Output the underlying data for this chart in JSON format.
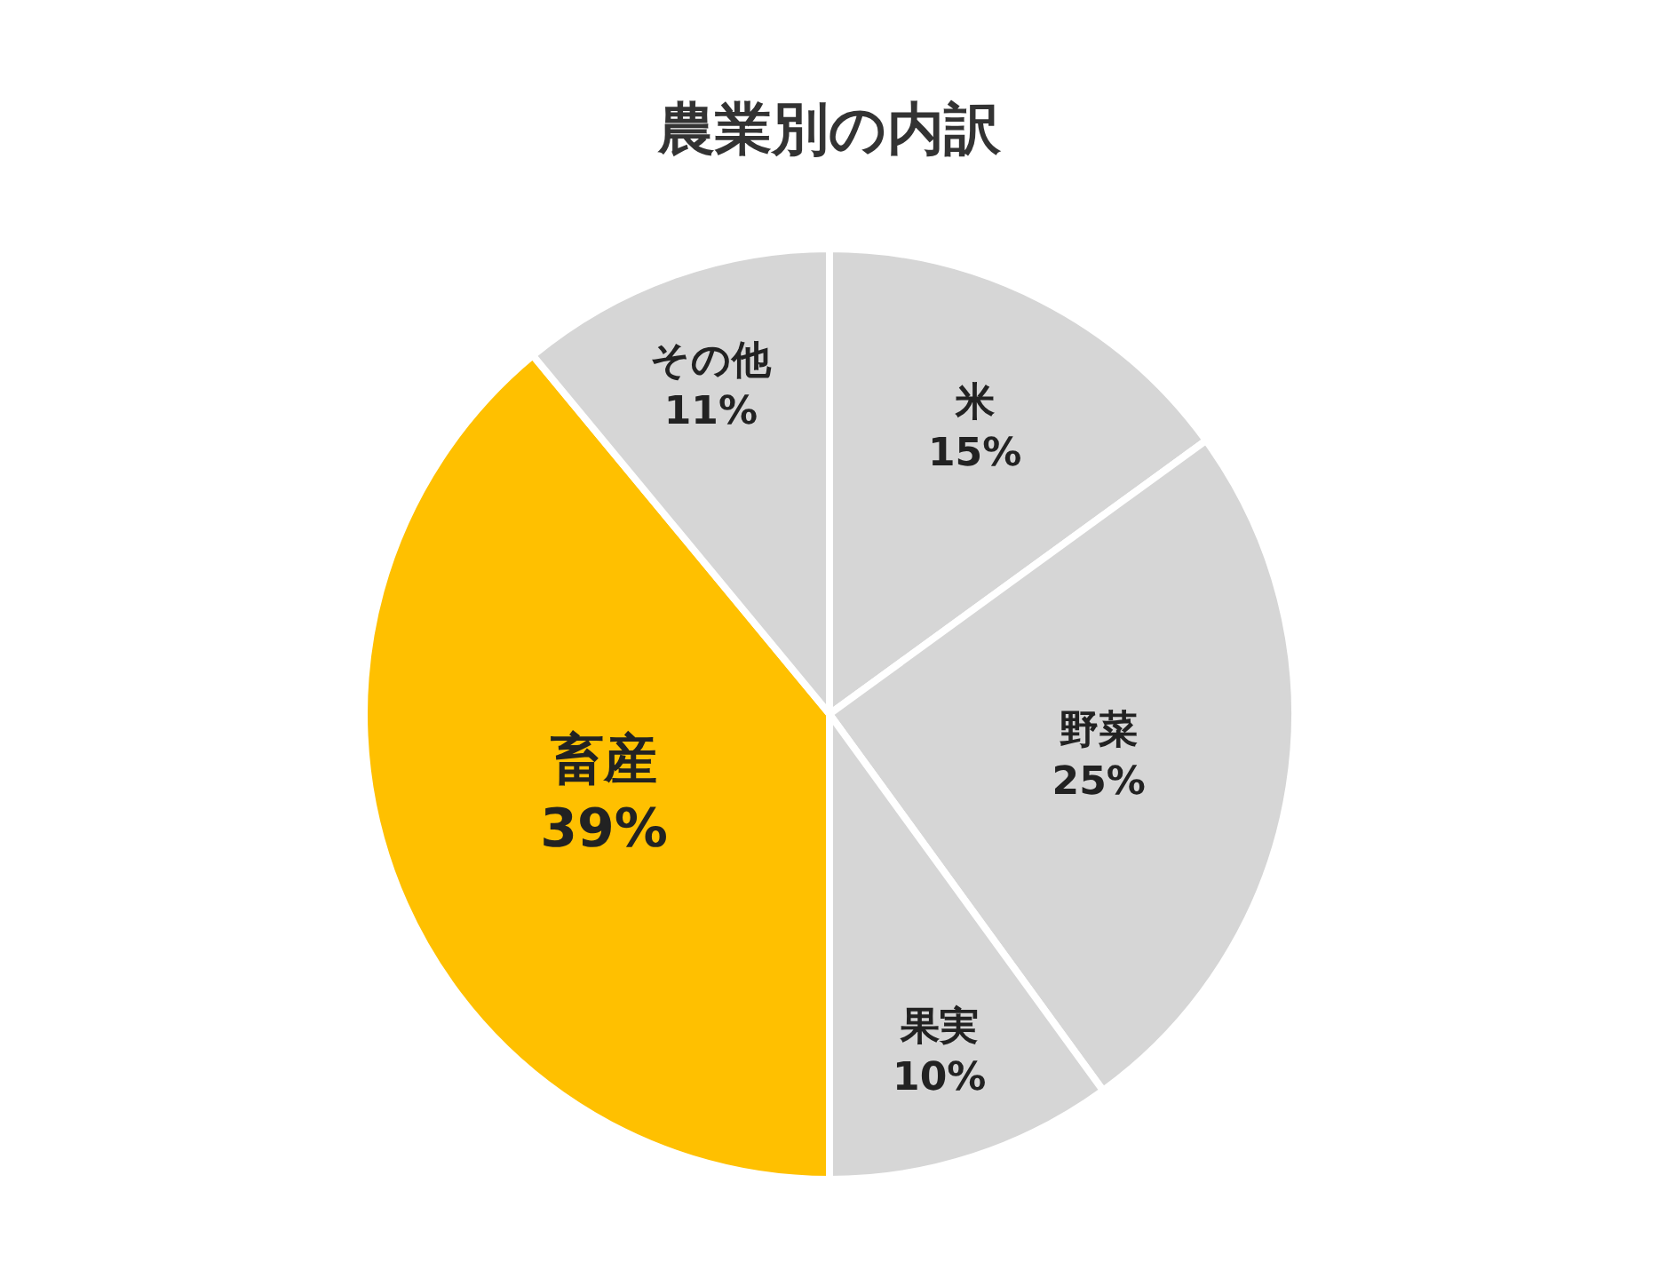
{
  "chart_data": {
    "type": "pie",
    "title": "農業別の内訳",
    "categories": [
      "米",
      "野菜",
      "果実",
      "畜産",
      "その他"
    ],
    "values": [
      15,
      25,
      10,
      39,
      11
    ],
    "value_labels": [
      "15%",
      "25%",
      "10%",
      "39%",
      "11%"
    ],
    "colors": [
      "#d6d6d6",
      "#d6d6d6",
      "#d6d6d6",
      "#ffc000",
      "#d6d6d6"
    ],
    "legend": false
  }
}
